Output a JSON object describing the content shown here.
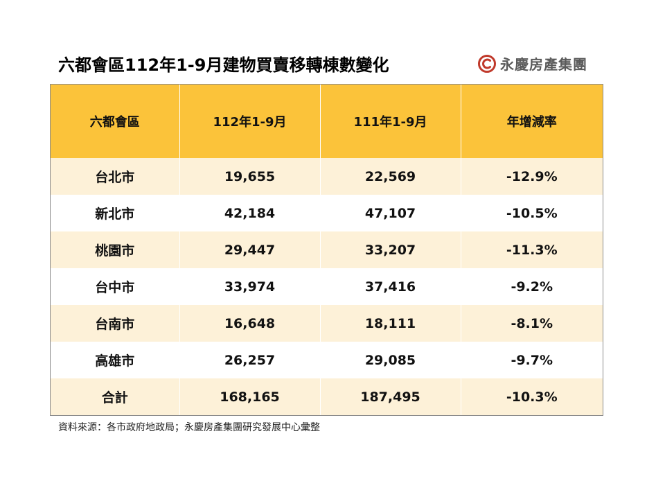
{
  "title": "六都會區112年1-9月建物買賣移轉棟數變化",
  "logo": {
    "text": "永慶房產集團",
    "color": "#c0392b"
  },
  "table": {
    "headers": [
      "六都會區",
      "112年1-9月",
      "111年1-9月",
      "年增減率"
    ],
    "rows": [
      {
        "city": "台北市",
        "y112": "19,655",
        "y111": "22,569",
        "change": "-12.9%"
      },
      {
        "city": "新北市",
        "y112": "42,184",
        "y111": "47,107",
        "change": "-10.5%"
      },
      {
        "city": "桃園市",
        "y112": "29,447",
        "y111": "33,207",
        "change": "-11.3%"
      },
      {
        "city": "台中市",
        "y112": "33,974",
        "y111": "37,416",
        "change": "-9.2%"
      },
      {
        "city": "台南市",
        "y112": "16,648",
        "y111": "18,111",
        "change": "-8.1%"
      },
      {
        "city": "高雄市",
        "y112": "26,257",
        "y111": "29,085",
        "change": "-9.7%"
      }
    ],
    "total": {
      "label": "合計",
      "y112": "168,165",
      "y111": "187,495",
      "change": "-10.3%"
    },
    "header_color": "#fbc33a",
    "stripe_color": "#fdf1d8"
  },
  "source": "資料來源：各市政府地政局；永慶房產集團研究發展中心彙整"
}
